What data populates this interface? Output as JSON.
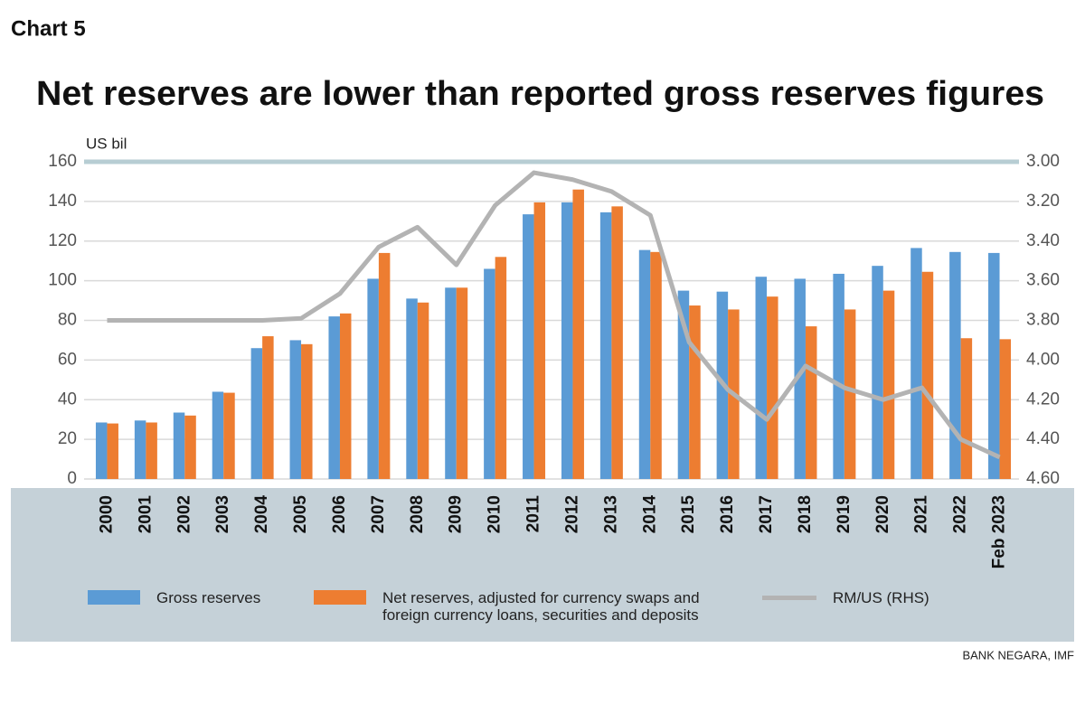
{
  "header": "Chart 5",
  "source": "BANK NEGARA, IMF",
  "chart_data": {
    "type": "bar",
    "title": "Net reserves are lower than reported gross reserves figures",
    "y_label": "US bil",
    "categories": [
      "2000",
      "2001",
      "2002",
      "2003",
      "2004",
      "2005",
      "2006",
      "2007",
      "2008",
      "2009",
      "2010",
      "2011",
      "2012",
      "2013",
      "2014",
      "2015",
      "2016",
      "2017",
      "2018",
      "2019",
      "2020",
      "2021",
      "2022",
      "Feb 2023"
    ],
    "series": [
      {
        "name": "Gross reserves",
        "color": "#5b9bd5",
        "values": [
          28.5,
          29.5,
          33.5,
          44,
          66,
          70,
          82,
          101,
          91,
          96.5,
          106,
          133.5,
          139.5,
          134.5,
          115.5,
          95,
          94.5,
          102,
          101,
          103.5,
          107.5,
          116.5,
          114.5,
          114
        ]
      },
      {
        "name": "Net reserves, adjusted for currency swaps and foreign currency loans, securities and deposits",
        "color": "#ed7d31",
        "values": [
          28,
          28.5,
          32,
          43.5,
          72,
          68,
          83.5,
          114,
          89,
          96.5,
          112,
          139.5,
          146,
          137.5,
          114.5,
          87.5,
          85.5,
          92,
          77,
          85.5,
          95,
          104.5,
          71,
          70.5
        ]
      },
      {
        "name": "RM/US (RHS)",
        "color": "#b3b3b3",
        "type": "line",
        "axis": "y2",
        "values": [
          3.8,
          3.8,
          3.8,
          3.8,
          3.8,
          3.79,
          3.665,
          3.43,
          3.33,
          3.52,
          3.22,
          3.055,
          3.09,
          3.15,
          3.27,
          3.91,
          4.15,
          4.3,
          4.03,
          4.14,
          4.2,
          4.14,
          4.4,
          4.49
        ]
      }
    ],
    "ylim": [
      0,
      160
    ],
    "yticks": [
      0,
      20,
      40,
      60,
      80,
      100,
      120,
      140,
      160
    ],
    "y2lim": [
      4.6,
      3.0
    ],
    "y2ticks": [
      {
        "value": 4.6,
        "label": "4.60"
      },
      {
        "value": 4.4,
        "label": "4.40"
      },
      {
        "value": 4.2,
        "label": "4.20"
      },
      {
        "value": 4,
        "label": "4.00"
      },
      {
        "value": 3.8,
        "label": "3.80"
      },
      {
        "value": 3.6,
        "label": "3.60"
      },
      {
        "value": 3.4,
        "label": "3.40"
      },
      {
        "value": 3.2,
        "label": "3.20"
      },
      {
        "value": 3,
        "label": "3.00"
      }
    ],
    "grid": true
  }
}
